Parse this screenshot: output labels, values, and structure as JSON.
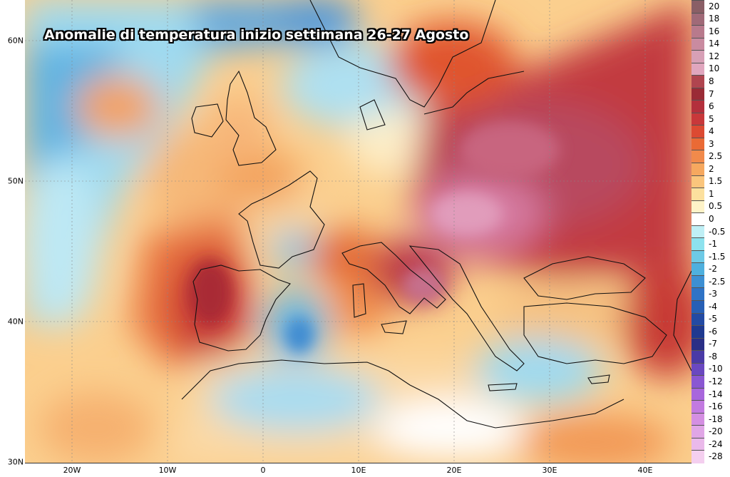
{
  "title": "Anomalie di temperatura inizio settimana 26-27 Agosto",
  "axes": {
    "lat_labels": [
      "60N",
      "50N",
      "40N",
      "30N"
    ],
    "lon_labels": [
      "20W",
      "10W",
      "0",
      "10E",
      "20E",
      "30E",
      "40E"
    ]
  },
  "legend": {
    "labels": [
      "20",
      "18",
      "16",
      "14",
      "12",
      "10",
      "8",
      "7",
      "6",
      "5",
      "4",
      "3",
      "2.5",
      "2",
      "1.5",
      "1",
      "0.5",
      "0",
      "-0.5",
      "-1",
      "-1.5",
      "-2",
      "-2.5",
      "-3",
      "-4",
      "-5",
      "-6",
      "-7",
      "-8",
      "-10",
      "-12",
      "-14",
      "-16",
      "-18",
      "-20",
      "-24",
      "-28"
    ],
    "colors": [
      "#8a5f66",
      "#a06a78",
      "#b87a8c",
      "#c98ba0",
      "#d7a0b6",
      "#e0a6be",
      "#b0454f",
      "#9a2b36",
      "#b3303c",
      "#c8383a",
      "#dc4a32",
      "#ea6a35",
      "#f18a4b",
      "#f6a85f",
      "#fac57c",
      "#fce09e",
      "#fef3c8",
      "#ffffff",
      "#bfeff5",
      "#8de2ee",
      "#6ecae6",
      "#4fb0de",
      "#3d8fd3",
      "#2f73c6",
      "#275fb5",
      "#234aa3",
      "#1f3990",
      "#2a2f86",
      "#4a3aa6",
      "#6a48c0",
      "#8a57d2",
      "#a866dc",
      "#c27ae0",
      "#d48fe2",
      "#e0a6e6",
      "#eab9ea",
      "#f4cfef"
    ]
  }
}
